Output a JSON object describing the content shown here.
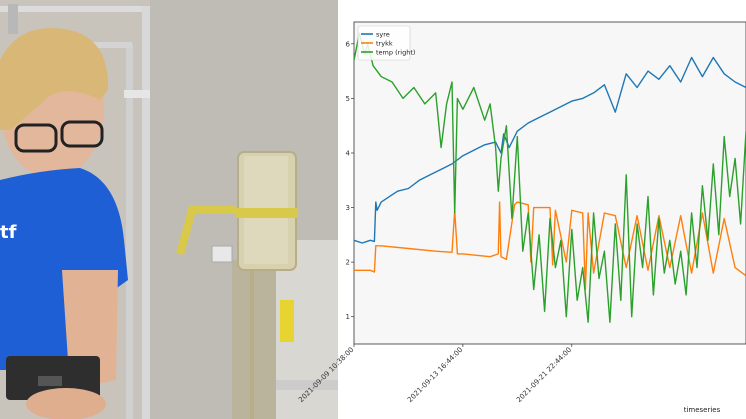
{
  "photo": {
    "shirt_logo_text": "tf"
  },
  "chart_data": {
    "type": "line",
    "xlabel": "timeseries",
    "ylabel": "",
    "ylim": [
      0.5,
      6.4
    ],
    "yticks": [
      1,
      2,
      3,
      4,
      5,
      6
    ],
    "xlim": [
      0,
      14.4
    ],
    "xticks": [
      {
        "pos": 0,
        "label": "2021-09-09 10:38:00"
      },
      {
        "pos": 4,
        "label": "2021-09-13 16:44:00"
      },
      {
        "pos": 8,
        "label": "2021-09-21 22:44:00"
      }
    ],
    "legend_position": "top-left",
    "grid": false,
    "colors": {
      "syre": "#1f77b4",
      "trykk": "#ff7f0e",
      "temp": "#2ca02c"
    },
    "series": [
      {
        "name": "syre",
        "color": "#1f77b4",
        "x": [
          0,
          0.3,
          0.6,
          0.75,
          0.8,
          0.85,
          1.0,
          1.3,
          1.6,
          2.0,
          2.4,
          2.8,
          3.2,
          3.6,
          4.0,
          4.4,
          4.8,
          5.2,
          5.4,
          5.5,
          5.7,
          6.0,
          6.4,
          6.8,
          7.2,
          7.6,
          8.0,
          8.4,
          8.8,
          9.2,
          9.6,
          10.0,
          10.4,
          10.8,
          11.2,
          11.6,
          12.0,
          12.4,
          12.8,
          13.2,
          13.6,
          14.0,
          14.4
        ],
        "values": [
          2.4,
          2.35,
          2.4,
          2.38,
          3.1,
          2.95,
          3.1,
          3.2,
          3.3,
          3.35,
          3.5,
          3.6,
          3.7,
          3.8,
          3.95,
          4.05,
          4.15,
          4.2,
          4.0,
          4.35,
          4.1,
          4.4,
          4.55,
          4.65,
          4.75,
          4.85,
          4.95,
          5.0,
          5.1,
          5.25,
          4.75,
          5.45,
          5.2,
          5.5,
          5.35,
          5.6,
          5.3,
          5.75,
          5.4,
          5.75,
          5.45,
          5.3,
          5.2
        ]
      },
      {
        "name": "trykk",
        "color": "#ff7f0e",
        "x": [
          0,
          0.6,
          0.75,
          0.8,
          1.0,
          2.0,
          3.0,
          3.6,
          3.7,
          3.8,
          4.0,
          5.0,
          5.3,
          5.35,
          5.4,
          5.6,
          5.9,
          6.0,
          6.4,
          6.5,
          6.6,
          7.2,
          7.3,
          7.4,
          7.8,
          8.0,
          8.4,
          8.5,
          8.6,
          8.8,
          9.2,
          9.6,
          10.0,
          10.4,
          10.8,
          11.2,
          11.6,
          12.0,
          12.4,
          12.8,
          13.2,
          13.6,
          14.0,
          14.4
        ],
        "values": [
          1.85,
          1.85,
          1.82,
          2.3,
          2.3,
          2.25,
          2.2,
          2.18,
          2.95,
          2.15,
          2.15,
          2.1,
          2.15,
          3.1,
          2.1,
          2.05,
          3.05,
          3.1,
          3.05,
          2.0,
          3.0,
          3.0,
          1.95,
          2.95,
          2.0,
          2.95,
          2.9,
          1.5,
          2.9,
          1.8,
          2.9,
          2.85,
          1.9,
          2.85,
          1.85,
          2.85,
          1.9,
          2.85,
          1.8,
          2.9,
          1.8,
          2.8,
          1.9,
          1.75
        ]
      },
      {
        "name": "temp (right)",
        "color": "#2ca02c",
        "x": [
          0,
          0.2,
          0.4,
          0.5,
          0.7,
          1.0,
          1.4,
          1.8,
          2.2,
          2.6,
          3.0,
          3.2,
          3.4,
          3.6,
          3.7,
          3.8,
          4.0,
          4.4,
          4.8,
          5.0,
          5.2,
          5.3,
          5.4,
          5.6,
          5.8,
          6.0,
          6.2,
          6.4,
          6.6,
          6.8,
          7.0,
          7.2,
          7.4,
          7.6,
          7.8,
          8.0,
          8.2,
          8.4,
          8.6,
          8.8,
          9.0,
          9.2,
          9.4,
          9.6,
          9.8,
          10.0,
          10.2,
          10.4,
          10.6,
          10.8,
          11.0,
          11.2,
          11.4,
          11.6,
          11.8,
          12.0,
          12.2,
          12.4,
          12.6,
          12.8,
          13.0,
          13.2,
          13.4,
          13.6,
          13.8,
          14.0,
          14.2,
          14.4
        ],
        "values": [
          5.7,
          6.2,
          5.8,
          6.0,
          5.6,
          5.4,
          5.3,
          5.0,
          5.2,
          4.9,
          5.1,
          4.1,
          4.9,
          5.3,
          2.9,
          5.0,
          4.8,
          5.2,
          4.6,
          4.9,
          4.1,
          3.3,
          3.9,
          4.5,
          2.8,
          4.3,
          2.2,
          2.9,
          1.5,
          2.5,
          1.1,
          2.8,
          1.9,
          2.4,
          1.0,
          2.6,
          1.3,
          1.9,
          0.9,
          2.9,
          1.7,
          2.2,
          0.9,
          2.7,
          1.3,
          3.6,
          1.0,
          2.7,
          1.9,
          3.2,
          1.4,
          2.8,
          1.8,
          2.4,
          1.6,
          2.2,
          1.4,
          2.9,
          1.9,
          3.4,
          2.4,
          3.8,
          2.5,
          4.3,
          3.2,
          3.9,
          2.7,
          4.4
        ]
      }
    ]
  }
}
